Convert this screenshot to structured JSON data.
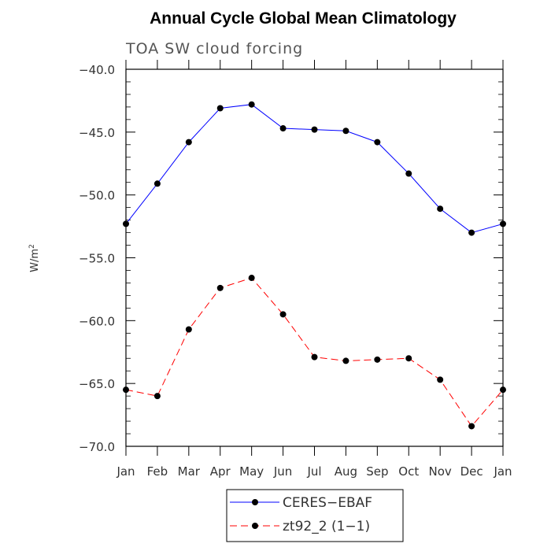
{
  "chart_data": {
    "type": "line",
    "title": "Annual Cycle Global Mean Climatology",
    "subtitle": "TOA SW cloud forcing",
    "ylabel": "W/m",
    "ylabel_sup": "2",
    "xlabel": "",
    "ylim": [
      -70,
      -40
    ],
    "yticks": [
      -40,
      -45,
      -50,
      -55,
      -60,
      -65,
      -70
    ],
    "ytick_labels": [
      "−40.0",
      "−45.0",
      "−50.0",
      "−55.0",
      "−60.0",
      "−65.0",
      "−70.0"
    ],
    "categories": [
      "Jan",
      "Feb",
      "Mar",
      "Apr",
      "May",
      "Jun",
      "Jul",
      "Aug",
      "Sep",
      "Oct",
      "Nov",
      "Dec",
      "Jan"
    ],
    "series": [
      {
        "name": "CERES−EBAF",
        "color": "#0000ff",
        "dash": "solid",
        "values": [
          -52.3,
          -49.1,
          -45.8,
          -43.1,
          -42.8,
          -44.7,
          -44.8,
          -44.9,
          -45.8,
          -48.3,
          -51.1,
          -53.0,
          -52.3
        ]
      },
      {
        "name": "zt92_2 (1−1)",
        "color": "#ff0000",
        "dash": "dashed",
        "values": [
          -65.5,
          -66.0,
          -60.7,
          -57.4,
          -56.6,
          -59.5,
          -62.9,
          -63.2,
          -63.1,
          -63.0,
          -64.7,
          -68.4,
          -65.5
        ]
      }
    ],
    "legend_position": "bottom-center"
  }
}
